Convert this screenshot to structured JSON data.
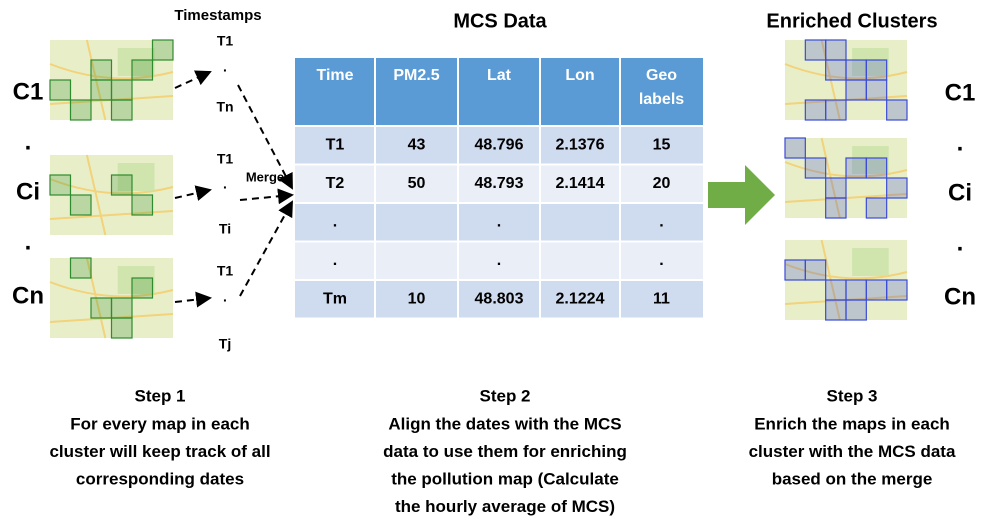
{
  "left": {
    "header": "Timestamps",
    "clusters": [
      "C1",
      ".",
      "Ci",
      ".",
      "Cn"
    ],
    "timestamps": [
      [
        "T1",
        ".",
        "Tn"
      ],
      [
        "T1",
        ".",
        "Ti"
      ],
      [
        "T1",
        ".",
        "Tj"
      ]
    ],
    "merge": "Merge"
  },
  "table": {
    "title": "MCS Data",
    "headers": [
      "Time",
      "PM2.5",
      "Lat",
      "Lon",
      "Geo labels"
    ],
    "rows": [
      [
        "T1",
        "43",
        "48.796",
        "2.1376",
        "15"
      ],
      [
        "T2",
        "50",
        "48.793",
        "2.1414",
        "20"
      ],
      [
        ".",
        "",
        ".",
        "",
        "."
      ],
      [
        ".",
        "",
        ".",
        "",
        "."
      ],
      [
        "Tm",
        "10",
        "48.803",
        "2.1224",
        "11"
      ]
    ]
  },
  "right": {
    "header": "Enriched Clusters",
    "clusters": [
      "C1",
      ".",
      "Ci",
      ".",
      "Cn"
    ]
  },
  "steps": [
    {
      "title": "Step 1",
      "lines": [
        "For every map in each",
        "cluster will keep track of all",
        "corresponding dates"
      ]
    },
    {
      "title": "Step 2",
      "lines": [
        "Align the dates with the MCS",
        "data to use them for enriching",
        "the pollution map (Calculate",
        "the hourly average of MCS)"
      ]
    },
    {
      "title": "Step 3",
      "lines": [
        "Enrich the maps in each",
        "cluster with the MCS data",
        "based on the merge"
      ]
    }
  ]
}
